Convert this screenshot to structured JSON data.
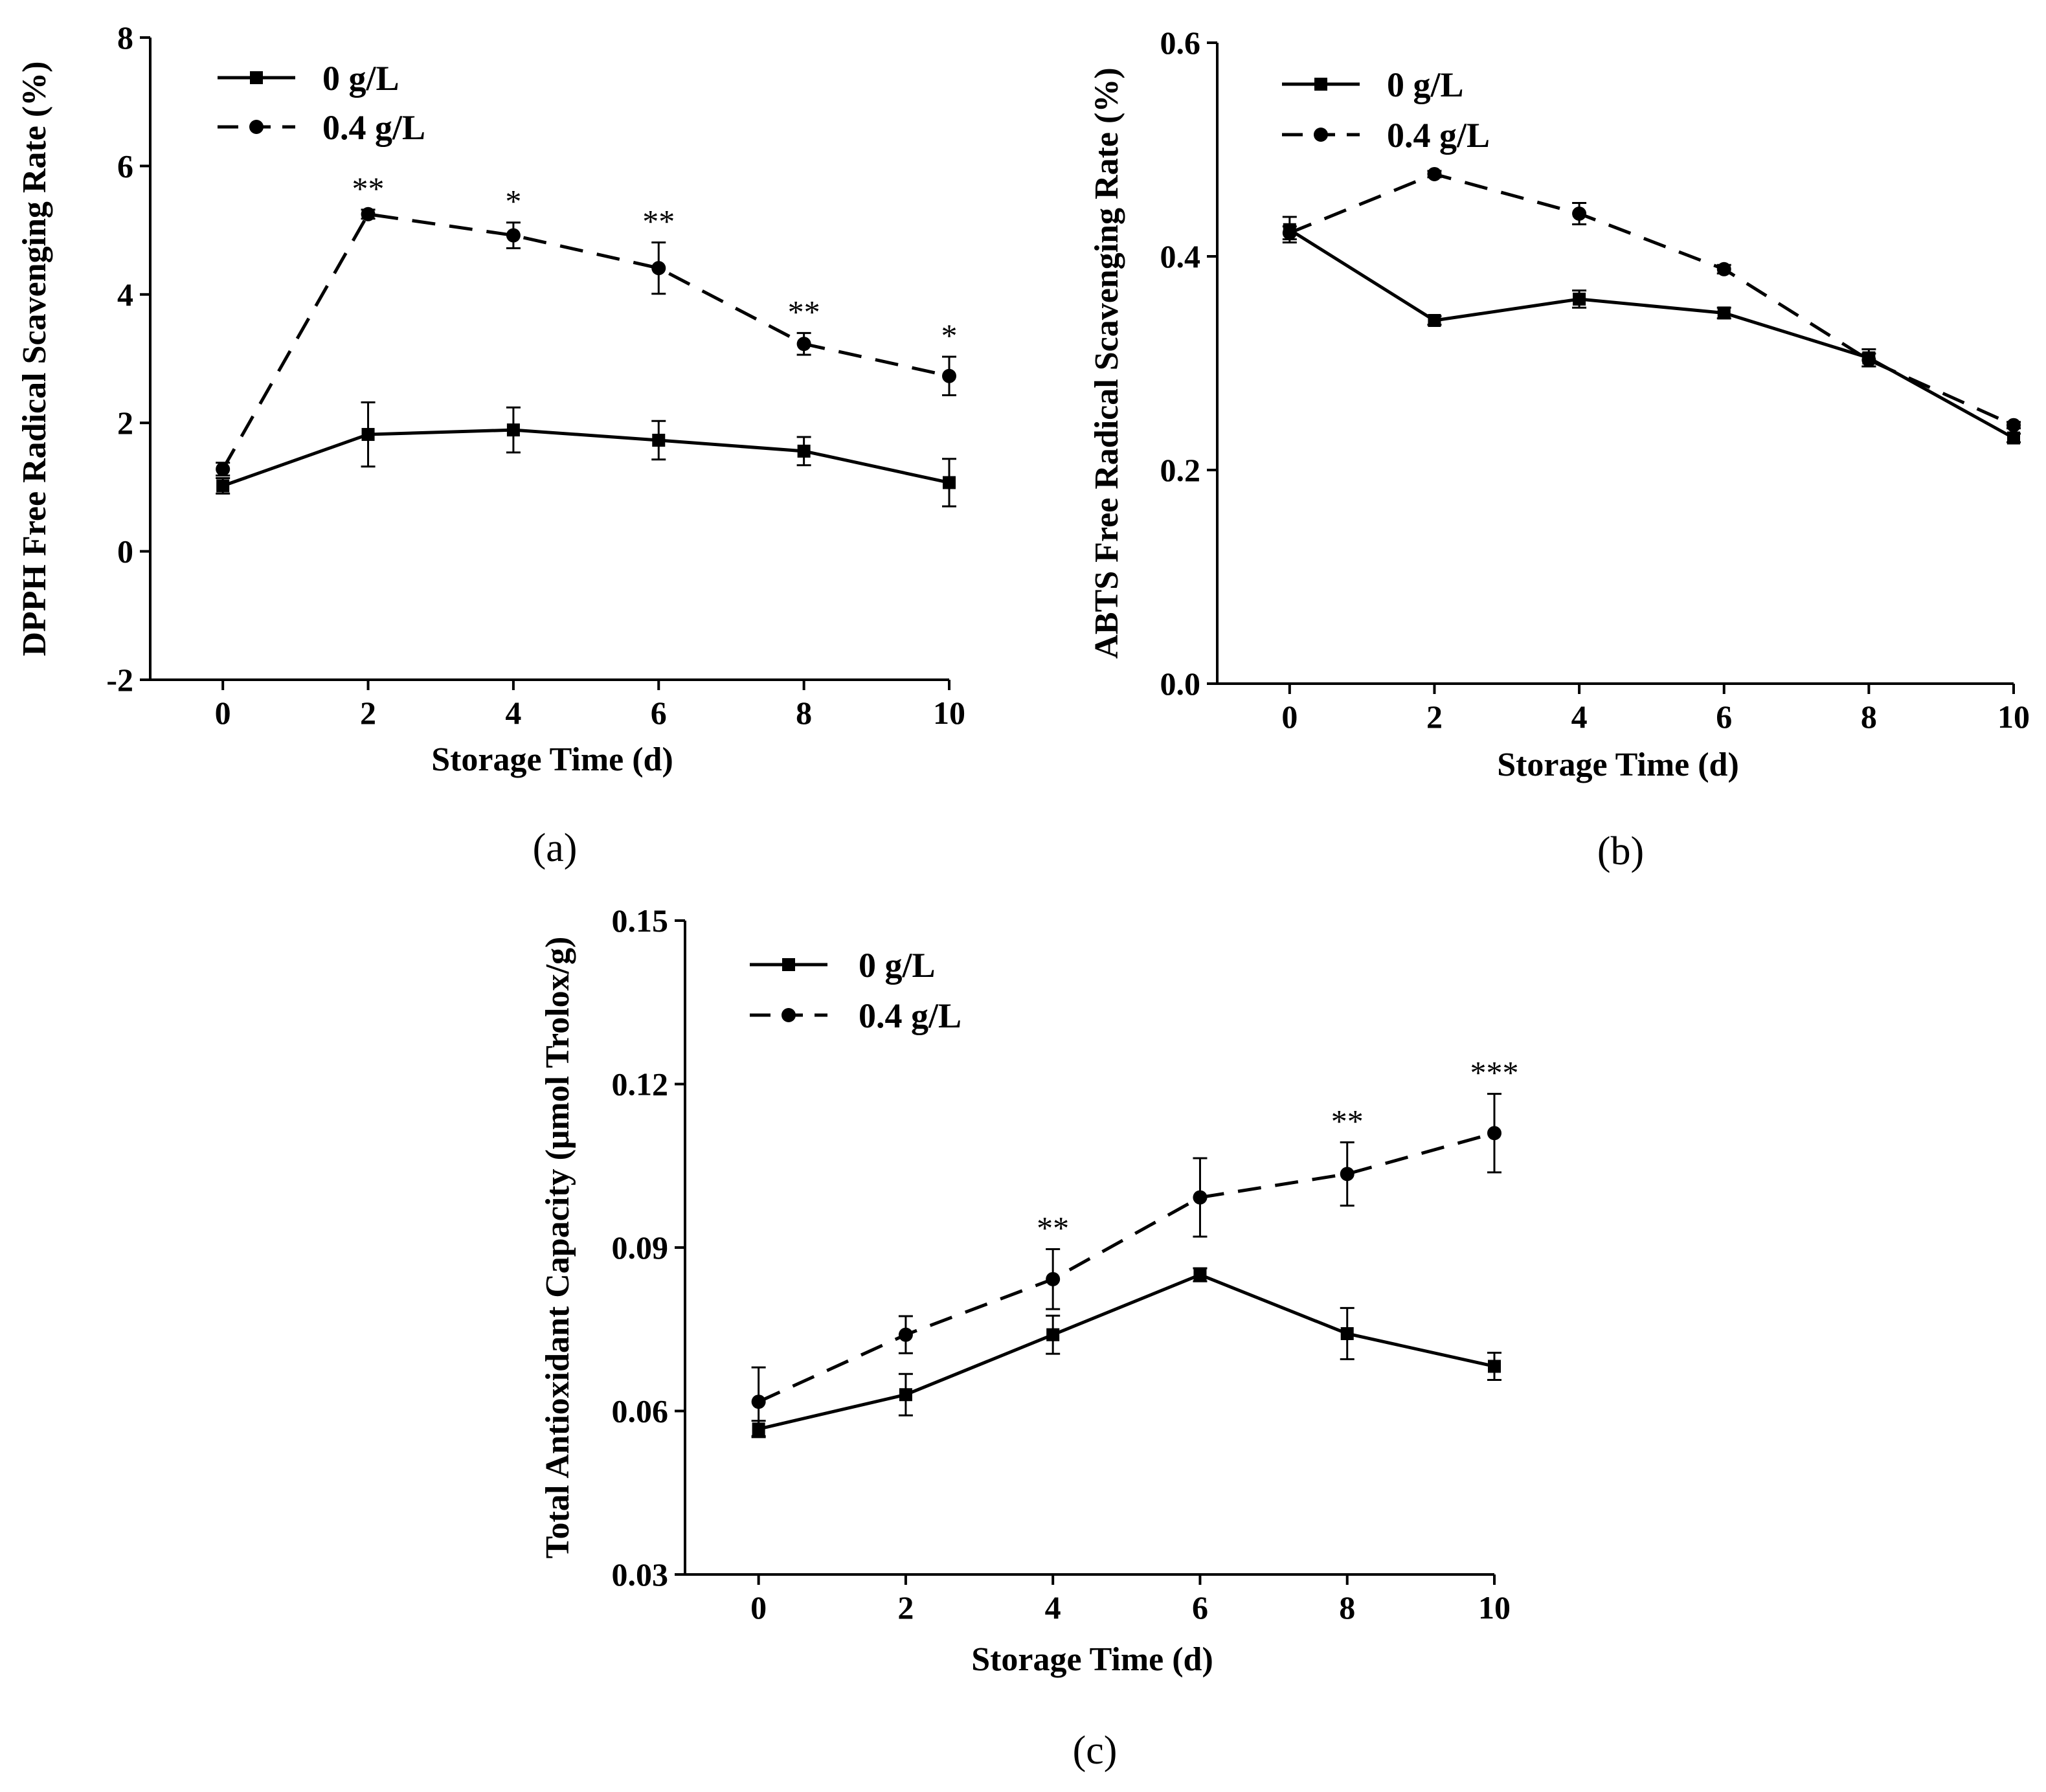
{
  "figure": {
    "background": "#ffffff",
    "line_color": "#000000"
  },
  "chart_data": [
    {
      "id": "a",
      "type": "line",
      "panel_label": "(a)",
      "xlabel": "Storage Time (d)",
      "ylabel": "DPPH Free Radical Scavenging Rate (%)",
      "x": [
        0,
        2,
        4,
        6,
        8,
        10
      ],
      "xticks": [
        0,
        2,
        4,
        6,
        8,
        10
      ],
      "xlim": [
        -1,
        10
      ],
      "ylim": [
        -2,
        8
      ],
      "yticks": [
        -2,
        0,
        2,
        4,
        6,
        8
      ],
      "ytick_labels": [
        "-2",
        "0",
        "2",
        "4",
        "6",
        "8"
      ],
      "legend_position": "top-left",
      "series": [
        {
          "name": "0 g/L",
          "marker": "square",
          "line": "solid",
          "values": [
            1.02,
            1.82,
            1.89,
            1.73,
            1.56,
            1.07
          ],
          "errors": [
            0.12,
            0.5,
            0.35,
            0.3,
            0.22,
            0.37
          ]
        },
        {
          "name": "0.4 g/L",
          "marker": "circle",
          "line": "dashed",
          "values": [
            1.28,
            5.25,
            4.92,
            4.41,
            3.23,
            2.73
          ],
          "errors": [
            0.1,
            0.07,
            0.2,
            0.4,
            0.17,
            0.3
          ]
        }
      ],
      "significance": [
        {
          "x": 2,
          "label": "**"
        },
        {
          "x": 4,
          "label": "*"
        },
        {
          "x": 6,
          "label": "**"
        },
        {
          "x": 8,
          "label": "**"
        },
        {
          "x": 10,
          "label": "*"
        }
      ]
    },
    {
      "id": "b",
      "type": "line",
      "panel_label": "(b)",
      "xlabel": "Storage Time (d)",
      "ylabel": "ABTS Free Radical Scavenging Rate (%)",
      "x": [
        0,
        2,
        4,
        6,
        8,
        10
      ],
      "xticks": [
        0,
        2,
        4,
        6,
        8,
        10
      ],
      "xlim": [
        -1,
        10
      ],
      "ylim": [
        0,
        0.6
      ],
      "yticks": [
        0,
        0.2,
        0.4,
        0.6
      ],
      "ytick_labels": [
        "0.0",
        "0.2",
        "0.4",
        "0.6"
      ],
      "legend_position": "top-left",
      "series": [
        {
          "name": "0 g/L",
          "marker": "square",
          "line": "solid",
          "values": [
            0.425,
            0.34,
            0.36,
            0.347,
            0.305,
            0.23
          ],
          "errors": [
            0.012,
            0.004,
            0.008,
            0.005,
            0.008,
            0.004
          ]
        },
        {
          "name": "0.4 g/L",
          "marker": "circle",
          "line": "dashed",
          "values": [
            0.422,
            0.477,
            0.44,
            0.388,
            0.303,
            0.242
          ],
          "errors": [
            0.006,
            0.003,
            0.01,
            0.004,
            0.006,
            0.003
          ]
        }
      ],
      "significance": []
    },
    {
      "id": "c",
      "type": "line",
      "panel_label": "(c)",
      "xlabel": "Storage Time (d)",
      "ylabel": "Total Antioxidant Capacity (μmol Trolox/g)",
      "x": [
        0,
        2,
        4,
        6,
        8,
        10
      ],
      "xticks": [
        0,
        2,
        4,
        6,
        8,
        10
      ],
      "xlim": [
        -1,
        10
      ],
      "ylim": [
        0.03,
        0.15
      ],
      "yticks": [
        0.03,
        0.06,
        0.09,
        0.12,
        0.15
      ],
      "ytick_labels": [
        "0.03",
        "0.06",
        "0.09",
        "0.12",
        "0.15"
      ],
      "legend_position": "top-left",
      "series": [
        {
          "name": "0 g/L",
          "marker": "square",
          "line": "solid",
          "values": [
            0.0567,
            0.063,
            0.074,
            0.085,
            0.0742,
            0.0682
          ],
          "errors": [
            0.0015,
            0.0038,
            0.0035,
            0.0012,
            0.0047,
            0.0025
          ]
        },
        {
          "name": "0.4 g/L",
          "marker": "circle",
          "line": "dashed",
          "values": [
            0.0617,
            0.074,
            0.0842,
            0.0992,
            0.1035,
            0.111
          ],
          "errors": [
            0.0063,
            0.0034,
            0.0055,
            0.0072,
            0.0058,
            0.0072
          ]
        }
      ],
      "significance": [
        {
          "x": 4,
          "label": "**"
        },
        {
          "x": 8,
          "label": "**"
        },
        {
          "x": 10,
          "label": "***"
        }
      ]
    }
  ]
}
